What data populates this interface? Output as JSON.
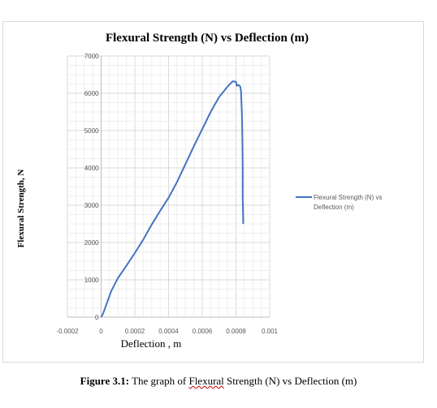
{
  "chart_data": {
    "type": "line",
    "title": "Flexural Strength (N) vs Deflection (m)",
    "xlabel": "Deflection , m",
    "ylabel": "Flexural Strength, N",
    "xlim": [
      -0.0002,
      0.001
    ],
    "ylim": [
      0,
      7000
    ],
    "x_ticks": [
      "-0.0002",
      "0",
      "0.0002",
      "0.0004",
      "0.0006",
      "0.0008",
      "0.001"
    ],
    "y_ticks": [
      "0",
      "1000",
      "2000",
      "3000",
      "4000",
      "5000",
      "6000",
      "7000"
    ],
    "grid": true,
    "legend_position": "right",
    "series": [
      {
        "name": "Flexural Strength (N) vs Deflection (m)",
        "legend_lines": [
          "Flexural Strength (N) vs",
          "Deflection (m)"
        ],
        "color": "#4472c4",
        "x": [
          0,
          1e-05,
          2e-05,
          4e-05,
          6e-05,
          0.0001,
          0.00015,
          0.0002,
          0.00025,
          0.0003,
          0.00035,
          0.0004,
          0.00045,
          0.0005,
          0.00055,
          0.0006,
          0.00065,
          0.0007,
          0.00075,
          0.00078,
          0.0008,
          0.000805,
          0.00081,
          0.00082,
          0.000825,
          0.00083,
          0.000835,
          0.000838,
          0.00084,
          0.00084,
          0.000842,
          0.000843
        ],
        "y": [
          0,
          80,
          200,
          450,
          700,
          1050,
          1380,
          1720,
          2080,
          2480,
          2850,
          3200,
          3620,
          4100,
          4580,
          5040,
          5500,
          5900,
          6180,
          6320,
          6310,
          6200,
          6220,
          6210,
          6180,
          6050,
          5500,
          4800,
          4000,
          3200,
          2800,
          2500
        ]
      }
    ]
  },
  "caption": {
    "label": "Figure 3.1:",
    "text_before": " The graph of ",
    "flagged_word": "Flexural",
    "text_after": " Strength (N) vs Deflection (m)"
  }
}
